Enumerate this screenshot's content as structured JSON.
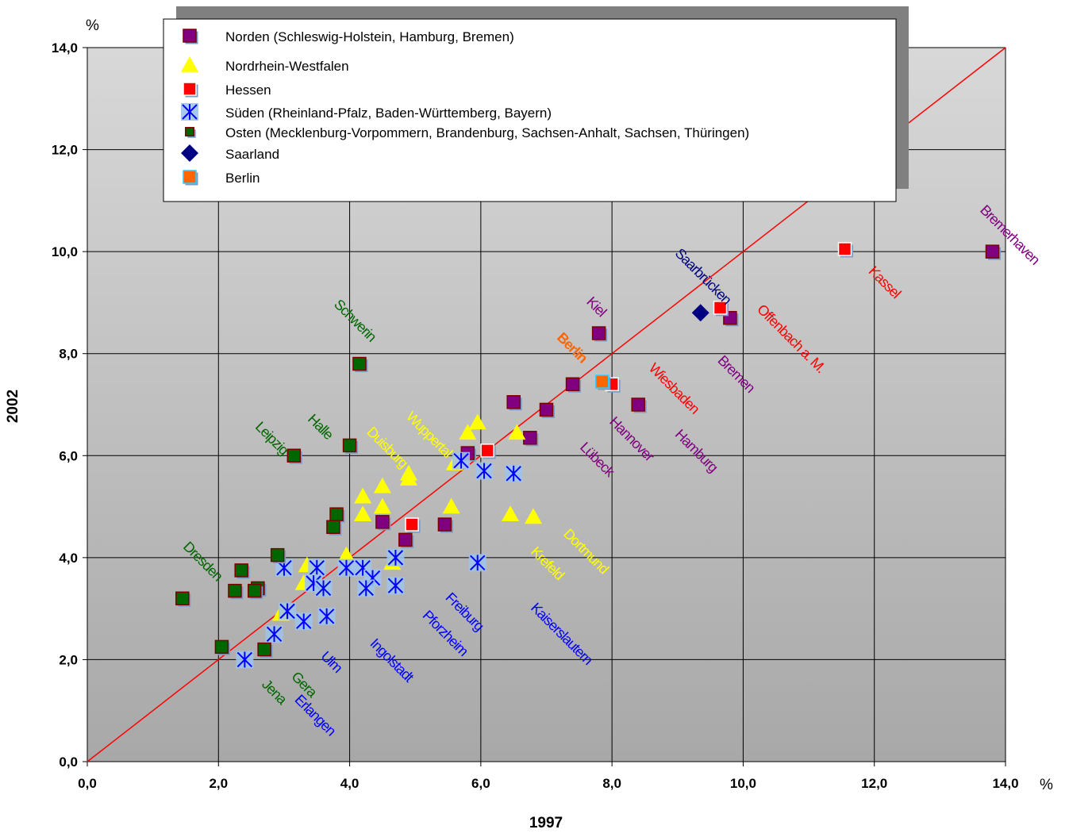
{
  "colors": {
    "norden": "#800080",
    "nrw": "#ffff00",
    "hessen": "#ff0000",
    "sueden": "#0000ff",
    "osten": "#006600",
    "saarland": "#000080",
    "berlin": "#ff6600"
  },
  "chart_data": {
    "type": "scatter",
    "xlabel": "1997",
    "ylabel": "2002",
    "x_unit": "%",
    "y_unit": "%",
    "xlim": [
      0,
      14
    ],
    "ylim": [
      0,
      14
    ],
    "x_ticks": [
      "0,0",
      "2,0",
      "4,0",
      "6,0",
      "8,0",
      "10,0",
      "12,0",
      "14,0"
    ],
    "y_ticks": [
      "0,0",
      "2,0",
      "4,0",
      "6,0",
      "8,0",
      "10,0",
      "12,0",
      "14,0"
    ],
    "grid": true,
    "legend_position": "top",
    "reference_line": "diagonal",
    "series": [
      {
        "key": "norden",
        "name": "Norden (Schleswig-Holstein, Hamburg, Bremen)",
        "marker": "square",
        "points": [
          [
            13.8,
            10.0
          ],
          [
            9.8,
            8.7
          ],
          [
            7.8,
            8.4
          ],
          [
            7.4,
            7.4
          ],
          [
            8.4,
            7.0
          ],
          [
            6.5,
            7.05
          ],
          [
            7.0,
            6.9
          ],
          [
            6.75,
            6.35
          ],
          [
            5.8,
            6.05
          ],
          [
            5.45,
            4.65
          ],
          [
            4.85,
            4.35
          ],
          [
            4.5,
            4.7
          ]
        ]
      },
      {
        "key": "nrw",
        "name": "Nordrhein-Westfalen",
        "marker": "triangle",
        "points": [
          [
            5.95,
            6.65
          ],
          [
            5.8,
            6.45
          ],
          [
            6.55,
            6.45
          ],
          [
            5.6,
            5.85
          ],
          [
            4.9,
            5.65
          ],
          [
            4.9,
            5.55
          ],
          [
            4.5,
            5.4
          ],
          [
            4.2,
            5.2
          ],
          [
            4.5,
            5.0
          ],
          [
            4.2,
            4.85
          ],
          [
            5.55,
            5.0
          ],
          [
            6.45,
            4.85
          ],
          [
            6.8,
            4.8
          ],
          [
            3.95,
            4.05
          ],
          [
            3.35,
            3.85
          ],
          [
            3.3,
            3.5
          ],
          [
            4.65,
            3.9
          ],
          [
            2.95,
            2.9
          ]
        ]
      },
      {
        "key": "hessen",
        "name": "Hessen",
        "marker": "square",
        "points": [
          [
            11.55,
            10.05
          ],
          [
            9.65,
            8.9
          ],
          [
            8.0,
            7.4
          ],
          [
            6.1,
            6.1
          ],
          [
            4.95,
            4.65
          ]
        ]
      },
      {
        "key": "sueden",
        "name": "Süden (Rheinland-Pfalz, Baden-Württemberg, Bayern)",
        "marker": "asterisk",
        "points": [
          [
            5.7,
            5.9
          ],
          [
            6.05,
            5.7
          ],
          [
            6.5,
            5.65
          ],
          [
            4.7,
            4.0
          ],
          [
            5.95,
            3.9
          ],
          [
            3.0,
            3.8
          ],
          [
            3.5,
            3.8
          ],
          [
            4.2,
            3.8
          ],
          [
            3.95,
            3.8
          ],
          [
            4.35,
            3.6
          ],
          [
            3.45,
            3.5
          ],
          [
            3.6,
            3.4
          ],
          [
            4.25,
            3.4
          ],
          [
            4.7,
            3.45
          ],
          [
            3.05,
            2.95
          ],
          [
            3.3,
            2.75
          ],
          [
            3.65,
            2.85
          ],
          [
            2.85,
            2.5
          ],
          [
            2.4,
            2.0
          ]
        ]
      },
      {
        "key": "osten",
        "name": "Osten (Mecklenburg-Vorpommern, Brandenburg, Sachsen-Anhalt, Sachsen, Thüringen)",
        "marker": "square",
        "points": [
          [
            4.15,
            7.8
          ],
          [
            4.0,
            6.2
          ],
          [
            3.15,
            6.0
          ],
          [
            3.8,
            4.85
          ],
          [
            3.75,
            4.6
          ],
          [
            2.9,
            4.05
          ],
          [
            2.35,
            3.75
          ],
          [
            2.25,
            3.35
          ],
          [
            2.6,
            3.4
          ],
          [
            2.55,
            3.35
          ],
          [
            1.45,
            3.2
          ],
          [
            2.05,
            2.25
          ],
          [
            2.7,
            2.2
          ]
        ]
      },
      {
        "key": "saarland",
        "name": "Saarland",
        "marker": "diamond",
        "points": [
          [
            9.35,
            8.8
          ]
        ]
      },
      {
        "key": "berlin",
        "name": "Berlin",
        "marker": "square",
        "points": [
          [
            7.85,
            7.45
          ]
        ]
      }
    ],
    "annotations": [
      {
        "text": "Bremerhaven",
        "x": 13.6,
        "y": 10.8,
        "series": "norden"
      },
      {
        "text": "Kassel",
        "x": 11.9,
        "y": 9.6,
        "series": "hessen"
      },
      {
        "text": "Saarbrücken",
        "x": 8.95,
        "y": 9.95,
        "series": "saarland"
      },
      {
        "text": "Offenbach a. M.",
        "x": 10.2,
        "y": 8.85,
        "series": "hessen"
      },
      {
        "text": "Bremen",
        "x": 9.6,
        "y": 7.85,
        "series": "norden"
      },
      {
        "text": "Kiel",
        "x": 7.6,
        "y": 9.0,
        "series": "norden"
      },
      {
        "text": "Berlin",
        "x": 7.15,
        "y": 8.3,
        "series": "berlin",
        "bold": true
      },
      {
        "text": "Wiesbaden",
        "x": 8.55,
        "y": 7.7,
        "series": "hessen"
      },
      {
        "text": "Hannover",
        "x": 7.95,
        "y": 6.65,
        "series": "norden"
      },
      {
        "text": "Hamburg",
        "x": 8.95,
        "y": 6.4,
        "series": "norden"
      },
      {
        "text": "Lübeck",
        "x": 7.5,
        "y": 6.15,
        "series": "norden"
      },
      {
        "text": "Schwerin",
        "x": 3.75,
        "y": 8.95,
        "series": "osten"
      },
      {
        "text": "Leipzig",
        "x": 2.55,
        "y": 6.55,
        "series": "osten"
      },
      {
        "text": "Halle",
        "x": 3.35,
        "y": 6.7,
        "series": "osten"
      },
      {
        "text": "Duisburg",
        "x": 4.25,
        "y": 6.45,
        "series": "nrw"
      },
      {
        "text": "Wuppertal",
        "x": 4.85,
        "y": 6.75,
        "series": "nrw"
      },
      {
        "text": "Dortmund",
        "x": 7.25,
        "y": 4.45,
        "series": "nrw"
      },
      {
        "text": "Krefeld",
        "x": 6.75,
        "y": 4.1,
        "series": "nrw"
      },
      {
        "text": "Dresden",
        "x": 1.45,
        "y": 4.2,
        "series": "osten"
      },
      {
        "text": "Kaiserslautern",
        "x": 6.75,
        "y": 3.0,
        "series": "sueden"
      },
      {
        "text": "Freiburg",
        "x": 5.45,
        "y": 3.2,
        "series": "sueden"
      },
      {
        "text": "Pforzheim",
        "x": 5.1,
        "y": 2.85,
        "series": "sueden"
      },
      {
        "text": "Ingolstadt",
        "x": 4.3,
        "y": 2.3,
        "series": "sueden"
      },
      {
        "text": "Ulm",
        "x": 3.55,
        "y": 2.05,
        "series": "sueden"
      },
      {
        "text": "Gera",
        "x": 3.1,
        "y": 1.65,
        "series": "osten"
      },
      {
        "text": "Jena",
        "x": 2.65,
        "y": 1.5,
        "series": "osten"
      },
      {
        "text": "Erlangen",
        "x": 3.15,
        "y": 1.2,
        "series": "sueden"
      }
    ]
  }
}
